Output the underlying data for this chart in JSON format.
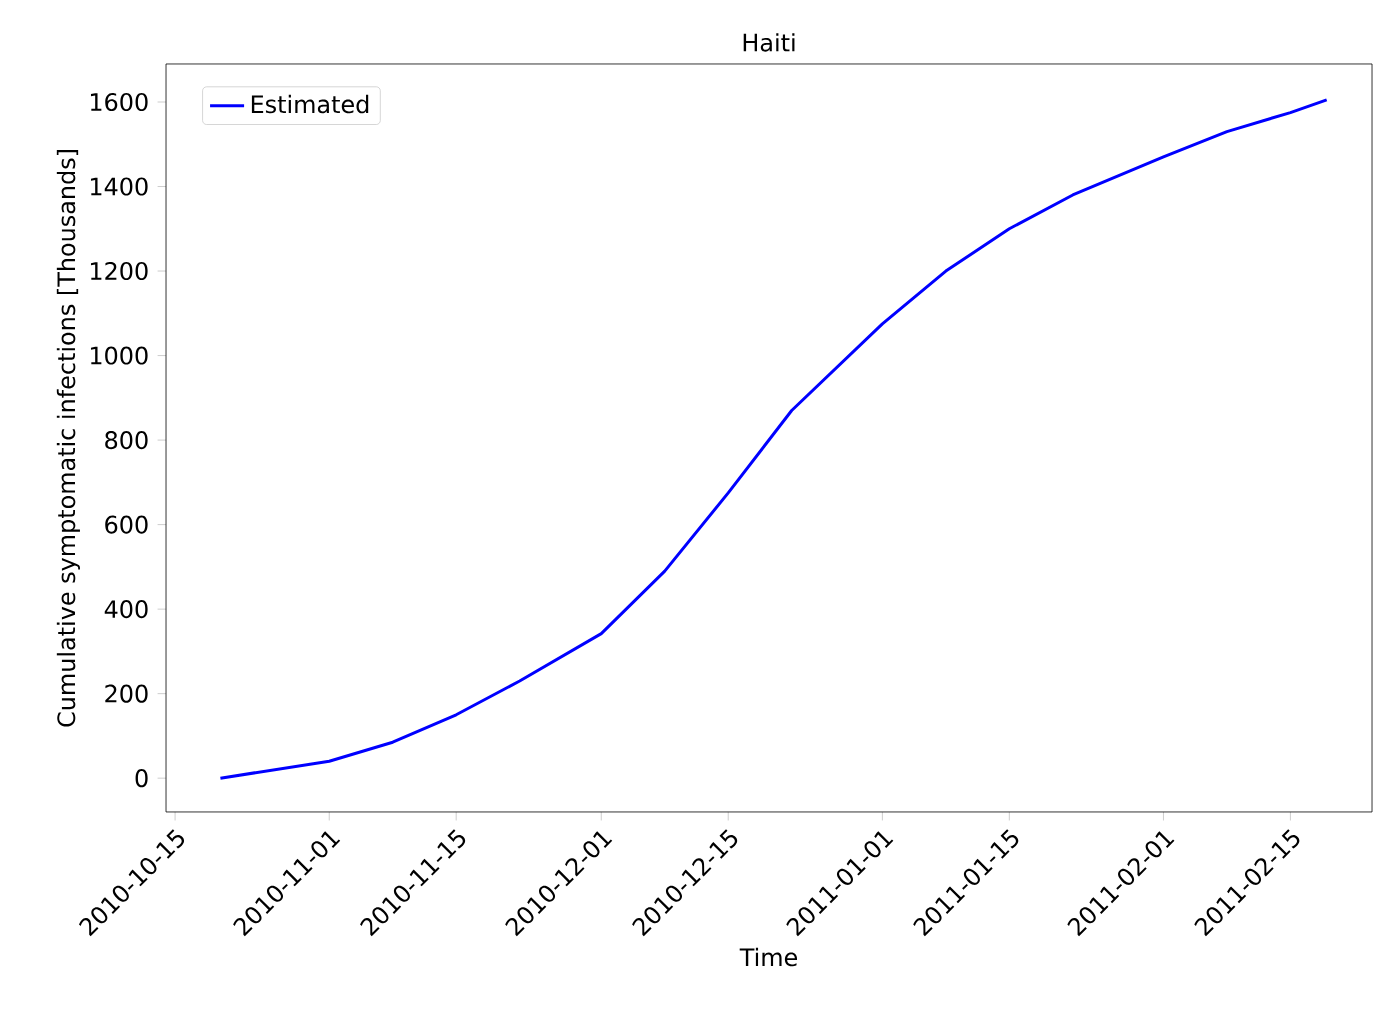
{
  "chart_data": {
    "type": "line",
    "title": "Haiti",
    "xlabel": "Time",
    "ylabel": "Cumulative symptomatic infections [Thousands]",
    "x": [
      "2010-10-20",
      "2010-11-01",
      "2010-11-08",
      "2010-11-15",
      "2010-11-22",
      "2010-12-01",
      "2010-12-08",
      "2010-12-15",
      "2010-12-22",
      "2011-01-01",
      "2011-01-08",
      "2011-01-15",
      "2011-01-22",
      "2011-02-01",
      "2011-02-08",
      "2011-02-15",
      "2011-02-19"
    ],
    "series": [
      {
        "name": "Estimated",
        "color": "#0000ff",
        "values": [
          0,
          40,
          85,
          150,
          230,
          342,
          490,
          675,
          870,
          1075,
          1200,
          1300,
          1380,
          1470,
          1530,
          1575,
          1605
        ]
      }
    ],
    "xlim": [
      "2010-10-14",
      "2011-02-24"
    ],
    "ylim": [
      -80,
      1690
    ],
    "xticks": [
      "2010-10-15",
      "2010-11-01",
      "2010-11-15",
      "2010-12-01",
      "2010-12-15",
      "2011-01-01",
      "2011-01-15",
      "2011-02-01",
      "2011-02-15"
    ],
    "yticks": [
      0,
      200,
      400,
      600,
      800,
      1000,
      1200,
      1400,
      1600
    ],
    "legend": "top left",
    "grid": false
  }
}
